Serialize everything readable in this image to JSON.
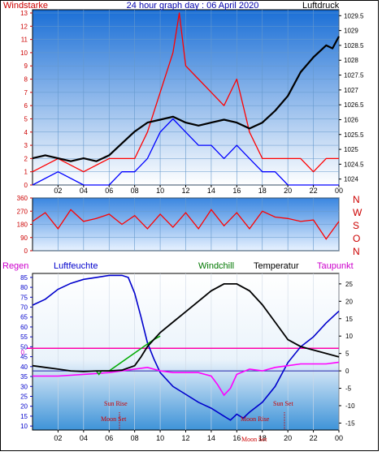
{
  "chart_data": [
    {
      "type": "line",
      "title": "24 hour graph day : 06 April 2020",
      "left_axis_label": "Windstarke",
      "right_axis_label": "Luftdruck",
      "x_ticks": [
        "02",
        "04",
        "06",
        "08",
        "10",
        "12",
        "14",
        "16",
        "18",
        "20",
        "22",
        "00"
      ],
      "y_left_ticks": [
        "0",
        "1",
        "2",
        "3",
        "4",
        "5",
        "6",
        "7",
        "8",
        "9",
        "10",
        "11",
        "12",
        "13"
      ],
      "y_right_ticks": [
        "1024",
        "1024.5",
        "1025",
        "1025.5",
        "1026",
        "1026.5",
        "1027",
        "1027.5",
        "1028",
        "1028.5",
        "1029",
        "1029.5"
      ],
      "y_left_range": [
        0,
        13
      ],
      "y_right_range": [
        1023.8,
        1029.7
      ],
      "series": [
        {
          "color": "#ff0000",
          "x": [
            0,
            2,
            4,
            6,
            7,
            8,
            9,
            10,
            11,
            11.5,
            12,
            13,
            14,
            15,
            16,
            17,
            18,
            19,
            20,
            21,
            22,
            23,
            24
          ],
          "y": [
            1,
            2,
            1,
            2,
            2,
            2,
            4,
            7,
            10,
            13,
            9,
            8,
            7,
            6,
            8,
            4,
            2,
            2,
            2,
            2,
            1,
            2,
            2
          ]
        },
        {
          "color": "#0000ff",
          "x": [
            0,
            2,
            4,
            6,
            7,
            8,
            9,
            10,
            11,
            12,
            13,
            14,
            15,
            16,
            17,
            18,
            19,
            20,
            22,
            24
          ],
          "y": [
            0,
            1,
            0,
            0,
            1,
            1,
            2,
            4,
            5,
            4,
            3,
            3,
            2,
            3,
            2,
            1,
            1,
            0,
            0,
            0
          ]
        },
        {
          "color": "#000000",
          "x": [
            0,
            1,
            2,
            3,
            4,
            5,
            6,
            7,
            8,
            9,
            10,
            11,
            12,
            13,
            14,
            15,
            16,
            17,
            18,
            19,
            20,
            21,
            22,
            23,
            23.5,
            24
          ],
          "y": [
            1024.7,
            1024.8,
            1024.7,
            1024.6,
            1024.7,
            1024.6,
            1024.8,
            1025.2,
            1025.6,
            1025.9,
            1026.0,
            1026.1,
            1025.9,
            1025.8,
            1025.9,
            1026.0,
            1025.9,
            1025.7,
            1025.9,
            1026.3,
            1026.8,
            1027.6,
            1028.1,
            1028.5,
            1028.4,
            1028.8
          ]
        }
      ]
    },
    {
      "type": "line",
      "right_axis_label": "N W S O N",
      "direction_letters": [
        "N",
        "W",
        "S",
        "O",
        "N"
      ],
      "y_ticks": [
        "0",
        "90",
        "180",
        "270",
        "360"
      ],
      "y_range": [
        0,
        360
      ],
      "series": [
        {
          "color": "#ff0000",
          "x": [
            0,
            1,
            2,
            3,
            4,
            5,
            6,
            7,
            8,
            9,
            10,
            11,
            12,
            13,
            14,
            15,
            16,
            17,
            18,
            19,
            20,
            21,
            22,
            23,
            24
          ],
          "y": [
            200,
            260,
            150,
            280,
            200,
            220,
            250,
            180,
            240,
            150,
            250,
            160,
            260,
            150,
            280,
            170,
            260,
            150,
            270,
            230,
            220,
            200,
            210,
            80,
            200
          ]
        }
      ]
    },
    {
      "type": "line",
      "labels": {
        "regen": "Regen",
        "luftfeuchte": "Luftfeuchte",
        "windchill": "Windchill",
        "temperatur": "Temperatur",
        "taupunkt": "Taupunkt"
      },
      "y_left_ticks": [
        "10",
        "15",
        "20",
        "25",
        "30",
        "35",
        "40",
        "45",
        "50",
        "55",
        "60",
        "65",
        "70",
        "75",
        "80",
        "85"
      ],
      "y_right_ticks": [
        "-15",
        "-10",
        "-5",
        "0",
        "5",
        "10",
        "15",
        "20",
        "25"
      ],
      "y_left_range": [
        8,
        87
      ],
      "y_right_range": [
        -17,
        28
      ],
      "rain_axis_value": "0",
      "x_ticks": [
        "02",
        "04",
        "06",
        "08",
        "10",
        "12",
        "14",
        "16",
        "18",
        "20",
        "22",
        "00"
      ],
      "annotations": [
        "Sun Rise",
        "Moon Set",
        "Moon Rise",
        "Sun Set",
        "Moon Set"
      ],
      "humidity": {
        "color": "#0000cc",
        "x": [
          0,
          1,
          2,
          3,
          4,
          5,
          6,
          7,
          7.5,
          8,
          8.5,
          9,
          9.5,
          10,
          11,
          12,
          13,
          14,
          15,
          15.5,
          16,
          16.5,
          17,
          18,
          19,
          20,
          21,
          22,
          23,
          24
        ],
        "y": [
          71,
          74,
          79,
          82,
          84,
          85,
          86,
          86,
          85,
          77,
          65,
          52,
          44,
          37,
          30,
          26,
          22,
          19,
          15,
          13,
          16,
          14,
          17,
          22,
          30,
          42,
          50,
          55,
          62,
          68
        ]
      },
      "temperature": {
        "color": "#000000",
        "x": [
          0,
          1,
          2,
          3,
          4,
          5,
          6,
          7,
          8,
          8.5,
          9,
          10,
          11,
          12,
          13,
          14,
          15,
          16,
          17,
          18,
          19,
          20,
          21,
          22,
          23,
          24
        ],
        "y": [
          1.5,
          1,
          0.5,
          0,
          -0.2,
          0,
          0,
          0.2,
          1.5,
          4,
          7,
          11,
          14,
          17,
          20,
          23,
          25,
          25,
          23,
          19,
          14,
          9,
          7,
          6,
          5,
          4
        ]
      },
      "windchill": {
        "color": "#00aa00",
        "x": [
          5,
          5.2,
          5.4,
          6,
          9.5,
          10
        ],
        "y": [
          0,
          -1,
          0,
          0,
          9,
          10
        ]
      },
      "dewpoint": {
        "color": "#ff00ff",
        "x": [
          0,
          2,
          4,
          6,
          8,
          9,
          10,
          11,
          12,
          13,
          14,
          14.5,
          15,
          15.5,
          16,
          17,
          18,
          19,
          20,
          21,
          22,
          23,
          24
        ],
        "y": [
          -1.5,
          -1.5,
          -1,
          -0.5,
          0.5,
          1,
          0,
          -0.5,
          -0.5,
          -0.5,
          -1.5,
          -4,
          -7,
          -5,
          -1,
          0.5,
          0,
          1,
          1.5,
          2,
          2,
          2,
          2.5
        ]
      }
    }
  ]
}
